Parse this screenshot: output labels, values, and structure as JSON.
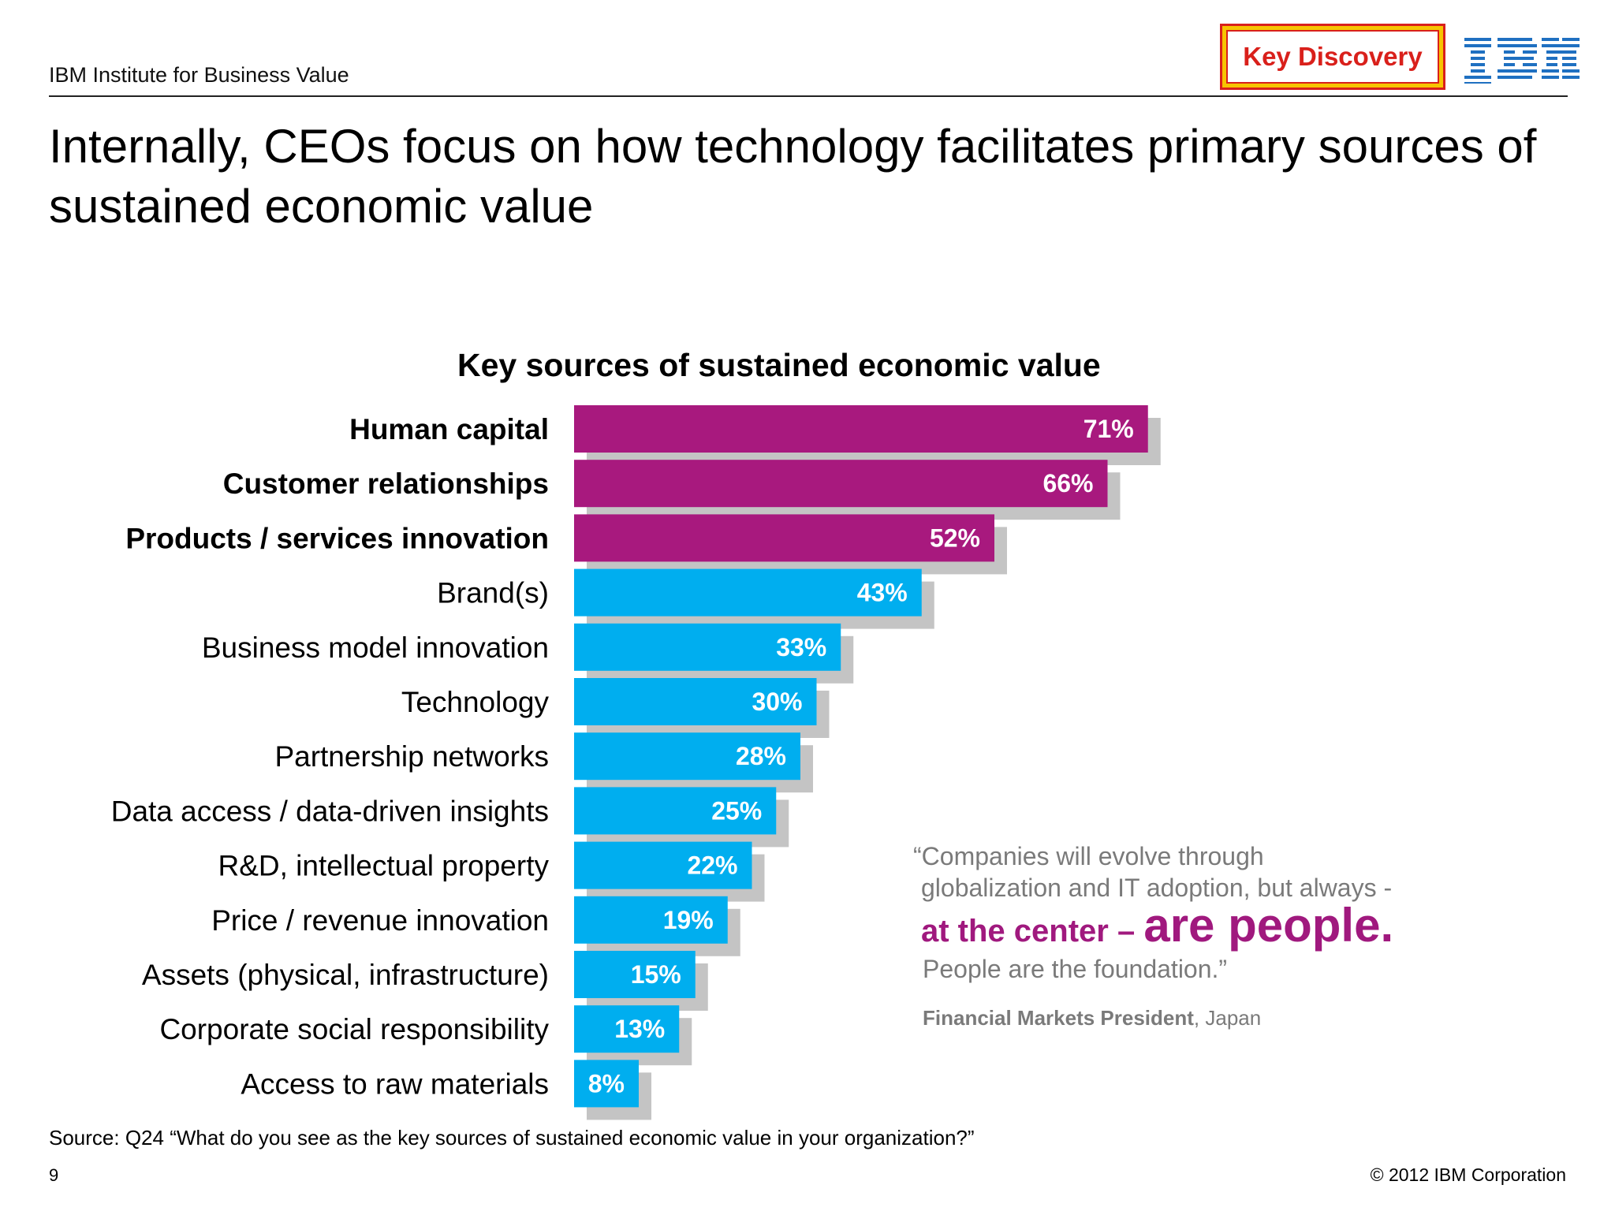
{
  "header": {
    "org": "IBM Institute for Business Value",
    "badge": "Key Discovery",
    "logo": "IBM"
  },
  "headline": "Internally, CEOs focus on how technology facilitates primary sources of sustained economic value",
  "colors": {
    "highlight": "#a8197e",
    "standard": "#00aeef",
    "shadow": "#c4c4c4",
    "badge_border": "#d9201b",
    "badge_frame": "#f7c400",
    "logo_blue": "#1f70c1"
  },
  "chart_data": {
    "type": "bar",
    "orientation": "horizontal",
    "title": "Key sources of sustained economic value",
    "categories": [
      "Human capital",
      "Customer relationships",
      "Products / services innovation",
      "Brand(s)",
      "Business model innovation",
      "Technology",
      "Partnership networks",
      "Data access / data-driven insights",
      "R&D, intellectual property",
      "Price / revenue innovation",
      "Assets (physical, infrastructure)",
      "Corporate social responsibility",
      "Access to raw materials"
    ],
    "values": [
      71,
      66,
      52,
      43,
      33,
      30,
      28,
      25,
      22,
      19,
      15,
      13,
      8
    ],
    "labels": [
      "71%",
      "66%",
      "52%",
      "43%",
      "33%",
      "30%",
      "28%",
      "25%",
      "22%",
      "19%",
      "15%",
      "13%",
      "8%"
    ],
    "highlighted": [
      true,
      true,
      true,
      false,
      false,
      false,
      false,
      false,
      false,
      false,
      false,
      false,
      false
    ],
    "unit": "%",
    "xlim": [
      0,
      71
    ],
    "grid": false
  },
  "quote": {
    "line1": "“Companies will evolve through",
    "line2": "globalization and IT adoption, but always -",
    "emph_small": "at the center – ",
    "emph_big": "are people.",
    "line3": "People are the foundation.”",
    "attrib_bold": "Financial Markets President",
    "attrib_rest": ", Japan"
  },
  "footer": {
    "source": "Source:  Q24 “What do you see as the key sources of sustained economic value in your organization?”",
    "page": "9",
    "copyright": "© 2012 IBM Corporation"
  }
}
